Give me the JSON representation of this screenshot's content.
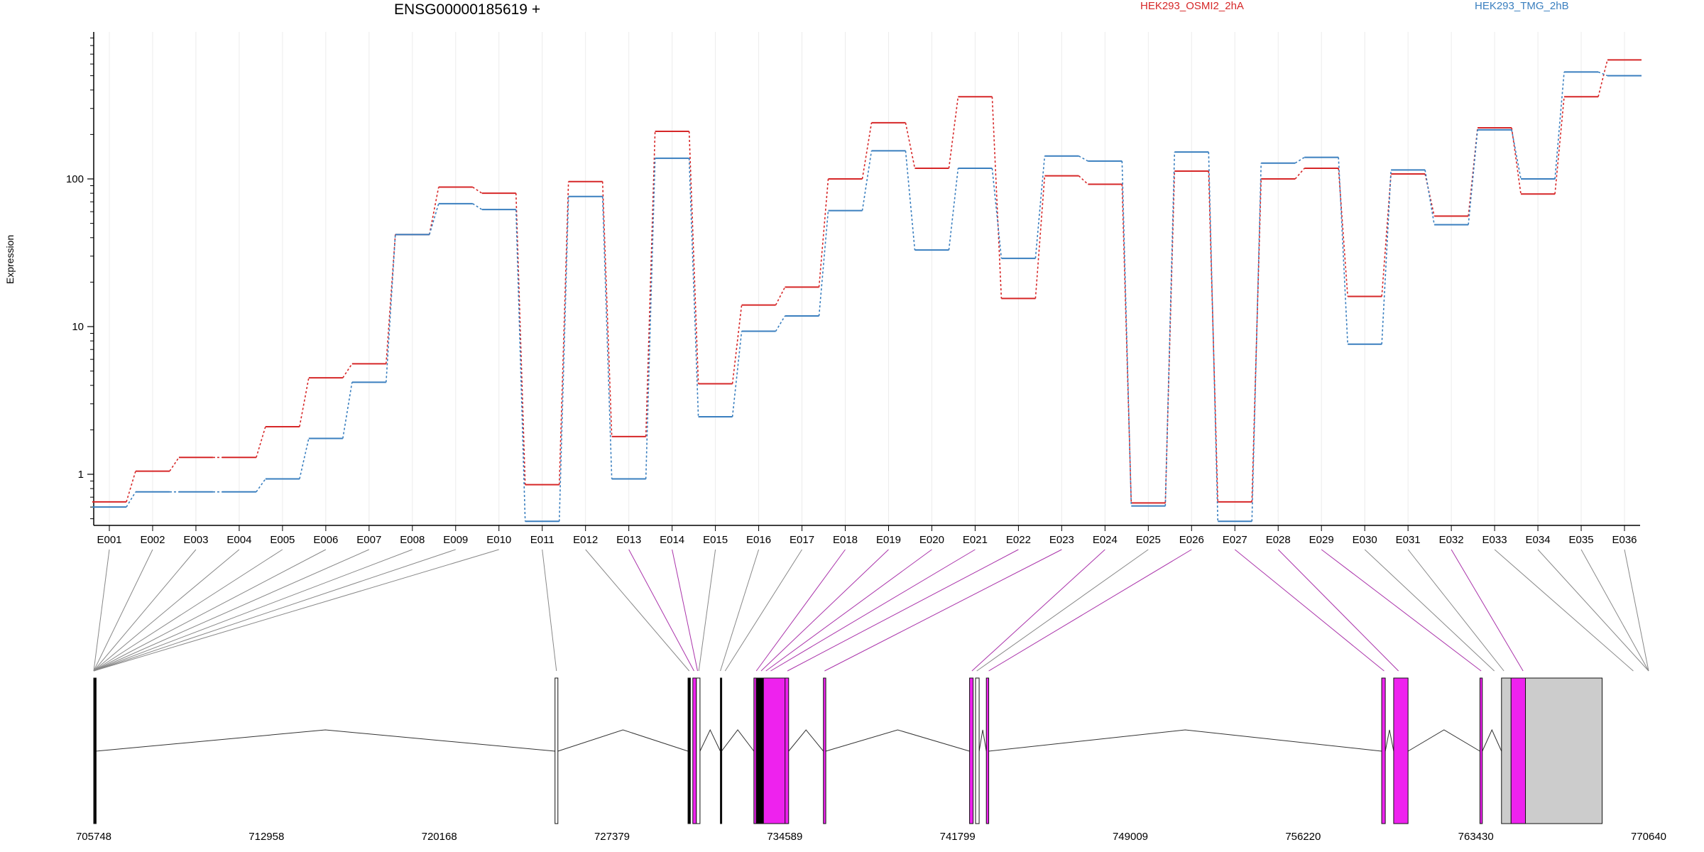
{
  "chart_data": {
    "type": "line",
    "title": "ENSG00000185619 +",
    "ylabel": "Expression",
    "yscale": "log",
    "yticks": [
      1,
      10,
      100
    ],
    "legend": [
      {
        "name": "HEK293_OSMI2_2hA",
        "color": "#d62728"
      },
      {
        "name": "HEK293_TMG_2hB",
        "color": "#3a7fbf"
      }
    ],
    "categories": [
      "E001",
      "E002",
      "E003",
      "E004",
      "E005",
      "E006",
      "E007",
      "E008",
      "E009",
      "E010",
      "E011",
      "E012",
      "E013",
      "E014",
      "E015",
      "E016",
      "E017",
      "E018",
      "E019",
      "E020",
      "E021",
      "E022",
      "E023",
      "E024",
      "E025",
      "E026",
      "E027",
      "E028",
      "E029",
      "E030",
      "E031",
      "E032",
      "E033",
      "E034",
      "E035",
      "E036"
    ],
    "series": [
      {
        "name": "HEK293_OSMI2_2hA",
        "color": "#d62728",
        "values": [
          0.65,
          1.05,
          1.3,
          1.3,
          2.1,
          4.5,
          5.6,
          42,
          88,
          80,
          0.85,
          96,
          1.8,
          210,
          4.1,
          14,
          18.5,
          100,
          240,
          118,
          360,
          15.5,
          105,
          92,
          0.64,
          113,
          0.65,
          100,
          118,
          16,
          108,
          56,
          222,
          79,
          360,
          640
        ]
      },
      {
        "name": "HEK293_TMG_2hB",
        "color": "#3a7fbf",
        "values": [
          0.6,
          0.76,
          0.76,
          0.76,
          0.93,
          1.75,
          4.2,
          42,
          68,
          62,
          0.48,
          76,
          0.93,
          138,
          2.45,
          9.3,
          11.8,
          61,
          155,
          33,
          118,
          29,
          143,
          132,
          0.61,
          152,
          0.48,
          128,
          140,
          7.6,
          115,
          49,
          215,
          100,
          530,
          500
        ]
      }
    ],
    "gene_model": {
      "coord_ticks": [
        "705748",
        "712958",
        "720168",
        "727379",
        "734589",
        "741799",
        "749009",
        "756220",
        "763430",
        "770640"
      ],
      "exon_start": [
        705748,
        705790,
        725000,
        730550,
        730750,
        730900,
        731900,
        733300,
        733400,
        733700,
        734600,
        736200,
        742300,
        742550,
        743000,
        759500,
        760000,
        763600,
        764500,
        764900,
        765500
      ],
      "exon_end": [
        705790,
        705830,
        725120,
        730650,
        730900,
        731050,
        731950,
        733400,
        733700,
        734700,
        734750,
        736300,
        742450,
        742700,
        743100,
        759650,
        760600,
        763700,
        764900,
        765500,
        768700
      ],
      "exon_color": [
        "#000000",
        "#000000",
        "#ffffff",
        "#000000",
        "#ee22ee",
        "#ffffff",
        "#000000",
        "#ee22ee",
        "#000000",
        "#ee22ee",
        "#ee22ee",
        "#ee22ee",
        "#ee22ee",
        "#ffffff",
        "#ee22ee",
        "#ee22ee",
        "#ee22ee",
        "#ee22ee",
        "#cccccc",
        "#ee22ee",
        "#cccccc"
      ],
      "label_link_coord": [
        705748,
        705748,
        705748,
        705748,
        705748,
        705748,
        705748,
        705748,
        705748,
        705748,
        725060,
        730600,
        730800,
        730950,
        731000,
        731900,
        732100,
        733400,
        733600,
        733800,
        734000,
        734700,
        736250,
        742400,
        742600,
        743100,
        759600,
        760200,
        763650,
        764200,
        764600,
        765400,
        770000,
        770640,
        770640,
        770640
      ],
      "link_color": [
        "#888888",
        "#888888",
        "#888888",
        "#888888",
        "#888888",
        "#888888",
        "#888888",
        "#888888",
        "#888888",
        "#888888",
        "#888888",
        "#888888",
        "#aa33aa",
        "#aa33aa",
        "#888888",
        "#888888",
        "#888888",
        "#aa33aa",
        "#aa33aa",
        "#aa33aa",
        "#aa33aa",
        "#aa33aa",
        "#aa33aa",
        "#aa33aa",
        "#888888",
        "#aa33aa",
        "#aa33aa",
        "#aa33aa",
        "#aa33aa",
        "#888888",
        "#888888",
        "#aa33aa",
        "#888888",
        "#888888",
        "#888888",
        "#888888"
      ]
    }
  }
}
